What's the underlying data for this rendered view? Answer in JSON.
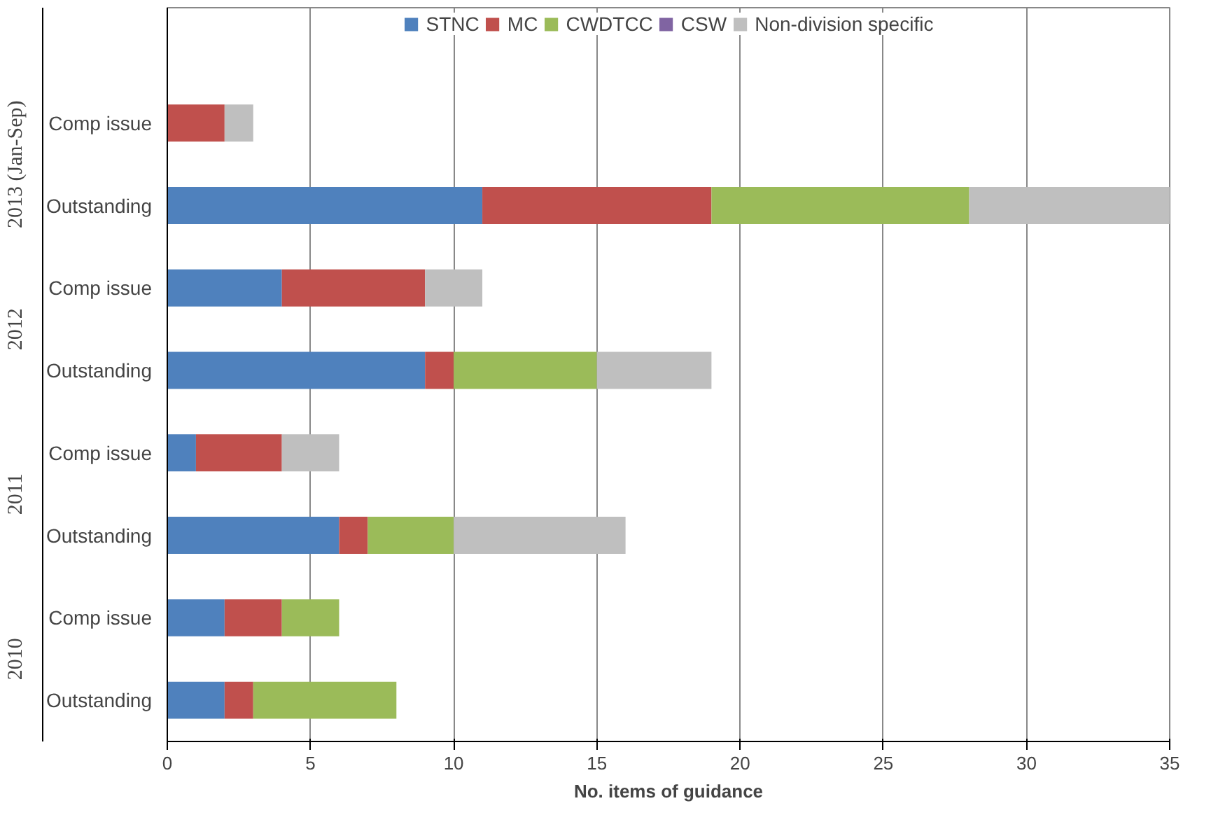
{
  "chart_data": {
    "type": "bar",
    "orientation": "horizontal",
    "stacked": true,
    "categories": [
      "Comp issue",
      "Outstanding",
      "Comp issue",
      "Outstanding",
      "Comp issue",
      "Outstanding",
      "Comp issue",
      "Outstanding"
    ],
    "annotations": [
      "2013 (Jan-Sep)",
      "2012",
      "2011",
      "2010"
    ],
    "series": [
      {
        "name": "STNC",
        "color": "#4f81bd",
        "values": [
          0,
          11,
          4,
          9,
          1,
          6,
          2,
          2
        ]
      },
      {
        "name": "MC",
        "color": "#c0504d",
        "values": [
          2,
          8,
          5,
          1,
          3,
          1,
          2,
          1
        ]
      },
      {
        "name": "CWDTCC",
        "color": "#9bbb59",
        "values": [
          0,
          9,
          0,
          5,
          0,
          3,
          2,
          5
        ]
      },
      {
        "name": "CSW",
        "color": "#8064a2",
        "values": [
          0,
          0,
          0,
          0,
          0,
          0,
          0,
          0
        ]
      },
      {
        "name": "Non-division specific",
        "color": "#bfbfbf",
        "values": [
          1,
          7,
          2,
          4,
          2,
          6,
          0,
          0
        ]
      }
    ],
    "xlabel": "No. items of guidance",
    "xlim": [
      0,
      35
    ],
    "xticks": [
      0,
      5,
      10,
      15,
      20,
      25,
      30,
      35
    ],
    "grid": "x",
    "legend": "top"
  }
}
